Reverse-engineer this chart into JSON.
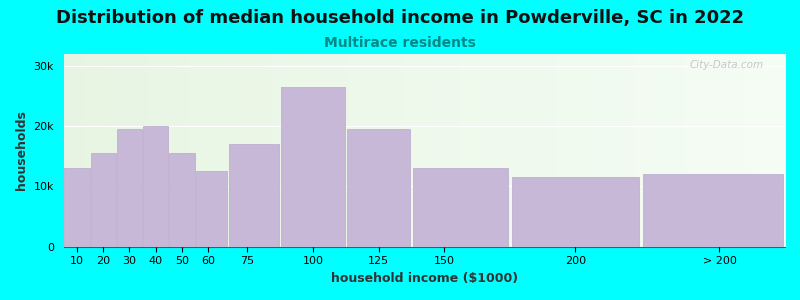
{
  "title": "Distribution of median household income in Powderville, SC in 2022",
  "subtitle": "Multirace residents",
  "xlabel": "household income ($1000)",
  "ylabel": "households",
  "background_outer": "#00FFFF",
  "bar_color": "#c8b8d8",
  "bar_edge_color": "#b8a8cc",
  "bin_edges": [
    5,
    15,
    25,
    35,
    45,
    55,
    67.5,
    87.5,
    112.5,
    137.5,
    175,
    225,
    280
  ],
  "bin_labels": [
    "10",
    "20",
    "30",
    "40",
    "50",
    "60",
    "75",
    "100",
    "125",
    "150",
    "200",
    "> 200"
  ],
  "values": [
    13000,
    15500,
    19500,
    20000,
    15500,
    12500,
    17000,
    26500,
    19500,
    13000,
    11500,
    12000
  ],
  "ylim": [
    0,
    32000
  ],
  "xlim": [
    5,
    280
  ],
  "yticks": [
    0,
    10000,
    20000,
    30000
  ],
  "ytick_labels": [
    "0",
    "10k",
    "20k",
    "30k"
  ],
  "xtick_positions": [
    10,
    20,
    30,
    40,
    50,
    60,
    75,
    100,
    125,
    150,
    200,
    255
  ],
  "xtick_labels": [
    "10",
    "20",
    "30",
    "40",
    "50",
    "60",
    "75",
    "100",
    "125",
    "150",
    "200",
    "> 200"
  ],
  "title_fontsize": 13,
  "subtitle_fontsize": 10,
  "subtitle_color": "#008888",
  "axis_label_fontsize": 9,
  "tick_fontsize": 8,
  "watermark": "City-Data.com"
}
